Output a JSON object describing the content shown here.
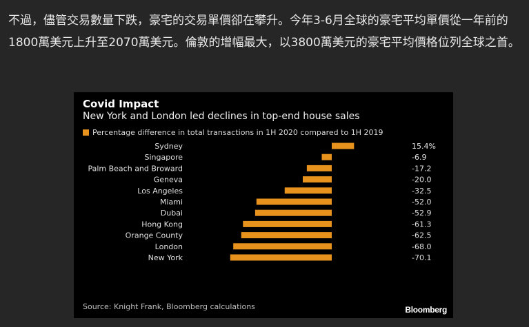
{
  "article": {
    "text": "不過，儘管交易數量下跌，豪宅的交易單價卻在攀升。今年3-6月全球的豪宅平均單價從一年前的1800萬美元上升至2070萬美元。倫敦的增幅最大，以3800萬美元的豪宅平均價格位列全球之首。"
  },
  "card": {
    "source": "Source: Knight Frank, Bloomberg calculations",
    "brand": "Bloomberg"
  },
  "chart_data": {
    "type": "bar",
    "orientation": "horizontal",
    "title": "Covid Impact",
    "subtitle": "New York and London led declines in top-end house sales",
    "legend": "Percentage difference in total transactions in 1H 2020 compared to 1H 2019",
    "categories": [
      "Sydney",
      "Singapore",
      "Palm Beach and Broward",
      "Geneva",
      "Los Angeles",
      "Miami",
      "Dubai",
      "Hong Kong",
      "Orange County",
      "London",
      "New York"
    ],
    "values": [
      15.4,
      -6.9,
      -17.2,
      -20.0,
      -32.5,
      -52.0,
      -52.9,
      -61.3,
      -62.5,
      -68.0,
      -70.1
    ],
    "value_labels": [
      "15.4%",
      "-6.9",
      "-17.2",
      "-20.0",
      "-32.5",
      "-52.0",
      "-52.9",
      "-61.3",
      "-62.5",
      "-68.0",
      "-70.1"
    ],
    "xlim": [
      -70.1,
      15.4
    ],
    "bar_color": "#e8921e",
    "grid": false
  }
}
